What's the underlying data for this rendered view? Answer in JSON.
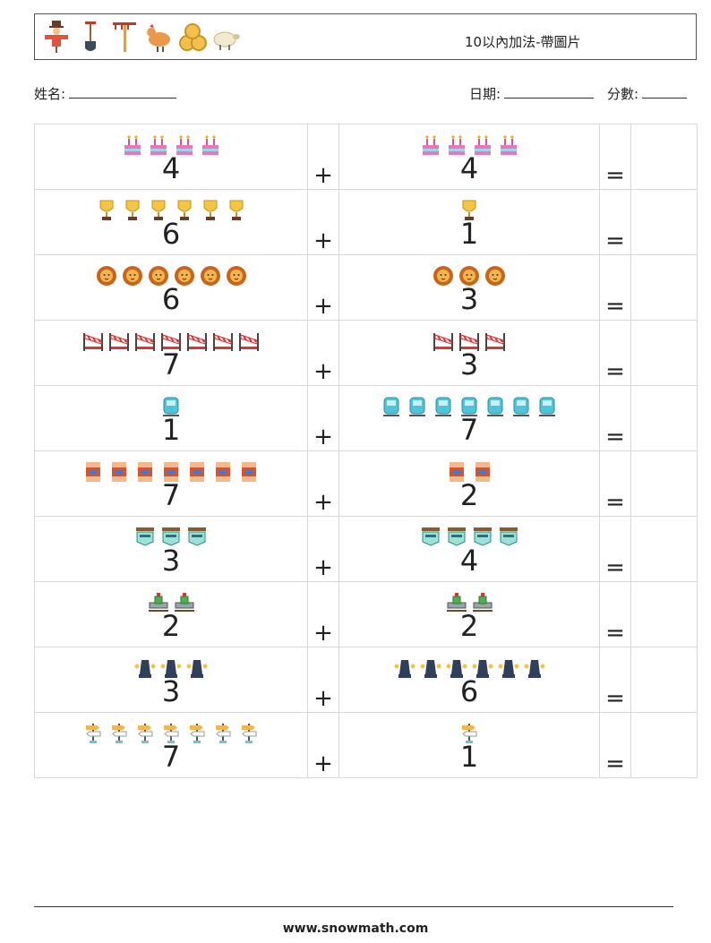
{
  "header": {
    "title": "10以內加法-帶圖片",
    "icons": [
      "scarecrow-icon",
      "shovel-icon",
      "rake-icon",
      "hen-icon",
      "hay-bale-icon",
      "sheep-icon"
    ]
  },
  "fields": {
    "name_label": "姓名:",
    "date_label": "日期:",
    "score_label": "分數:"
  },
  "problems": [
    {
      "a": 4,
      "a_icon": "birthday-cake-icon",
      "op": "+",
      "b": 4,
      "b_icon": "birthday-cake-icon",
      "eq": "="
    },
    {
      "a": 6,
      "a_icon": "trophy-icon",
      "op": "+",
      "b": 1,
      "b_icon": "trophy-icon",
      "eq": "="
    },
    {
      "a": 6,
      "a_icon": "lion-icon",
      "op": "+",
      "b": 3,
      "b_icon": "lion-icon",
      "eq": "="
    },
    {
      "a": 7,
      "a_icon": "barrier-icon",
      "op": "+",
      "b": 3,
      "b_icon": "barrier-icon",
      "eq": "="
    },
    {
      "a": 1,
      "a_icon": "tram-icon",
      "op": "+",
      "b": 7,
      "b_icon": "tram-icon",
      "eq": "="
    },
    {
      "a": 7,
      "a_icon": "sauna-icon",
      "op": "+",
      "b": 2,
      "b_icon": "sauna-icon",
      "eq": "="
    },
    {
      "a": 3,
      "a_icon": "hotel-sign-icon",
      "op": "+",
      "b": 4,
      "b_icon": "hotel-sign-icon",
      "eq": "="
    },
    {
      "a": 2,
      "a_icon": "pipe-valve-icon",
      "op": "+",
      "b": 2,
      "b_icon": "pipe-valve-icon",
      "eq": "="
    },
    {
      "a": 3,
      "a_icon": "street-lamp-icon",
      "op": "+",
      "b": 6,
      "b_icon": "street-lamp-icon",
      "eq": "="
    },
    {
      "a": 7,
      "a_icon": "signpost-icon",
      "op": "+",
      "b": 1,
      "b_icon": "signpost-icon",
      "eq": "="
    }
  ],
  "colors": {
    "grid": "#d8d8d8",
    "text": "#222222"
  },
  "footer": {
    "url": "www.snowmath.com"
  }
}
